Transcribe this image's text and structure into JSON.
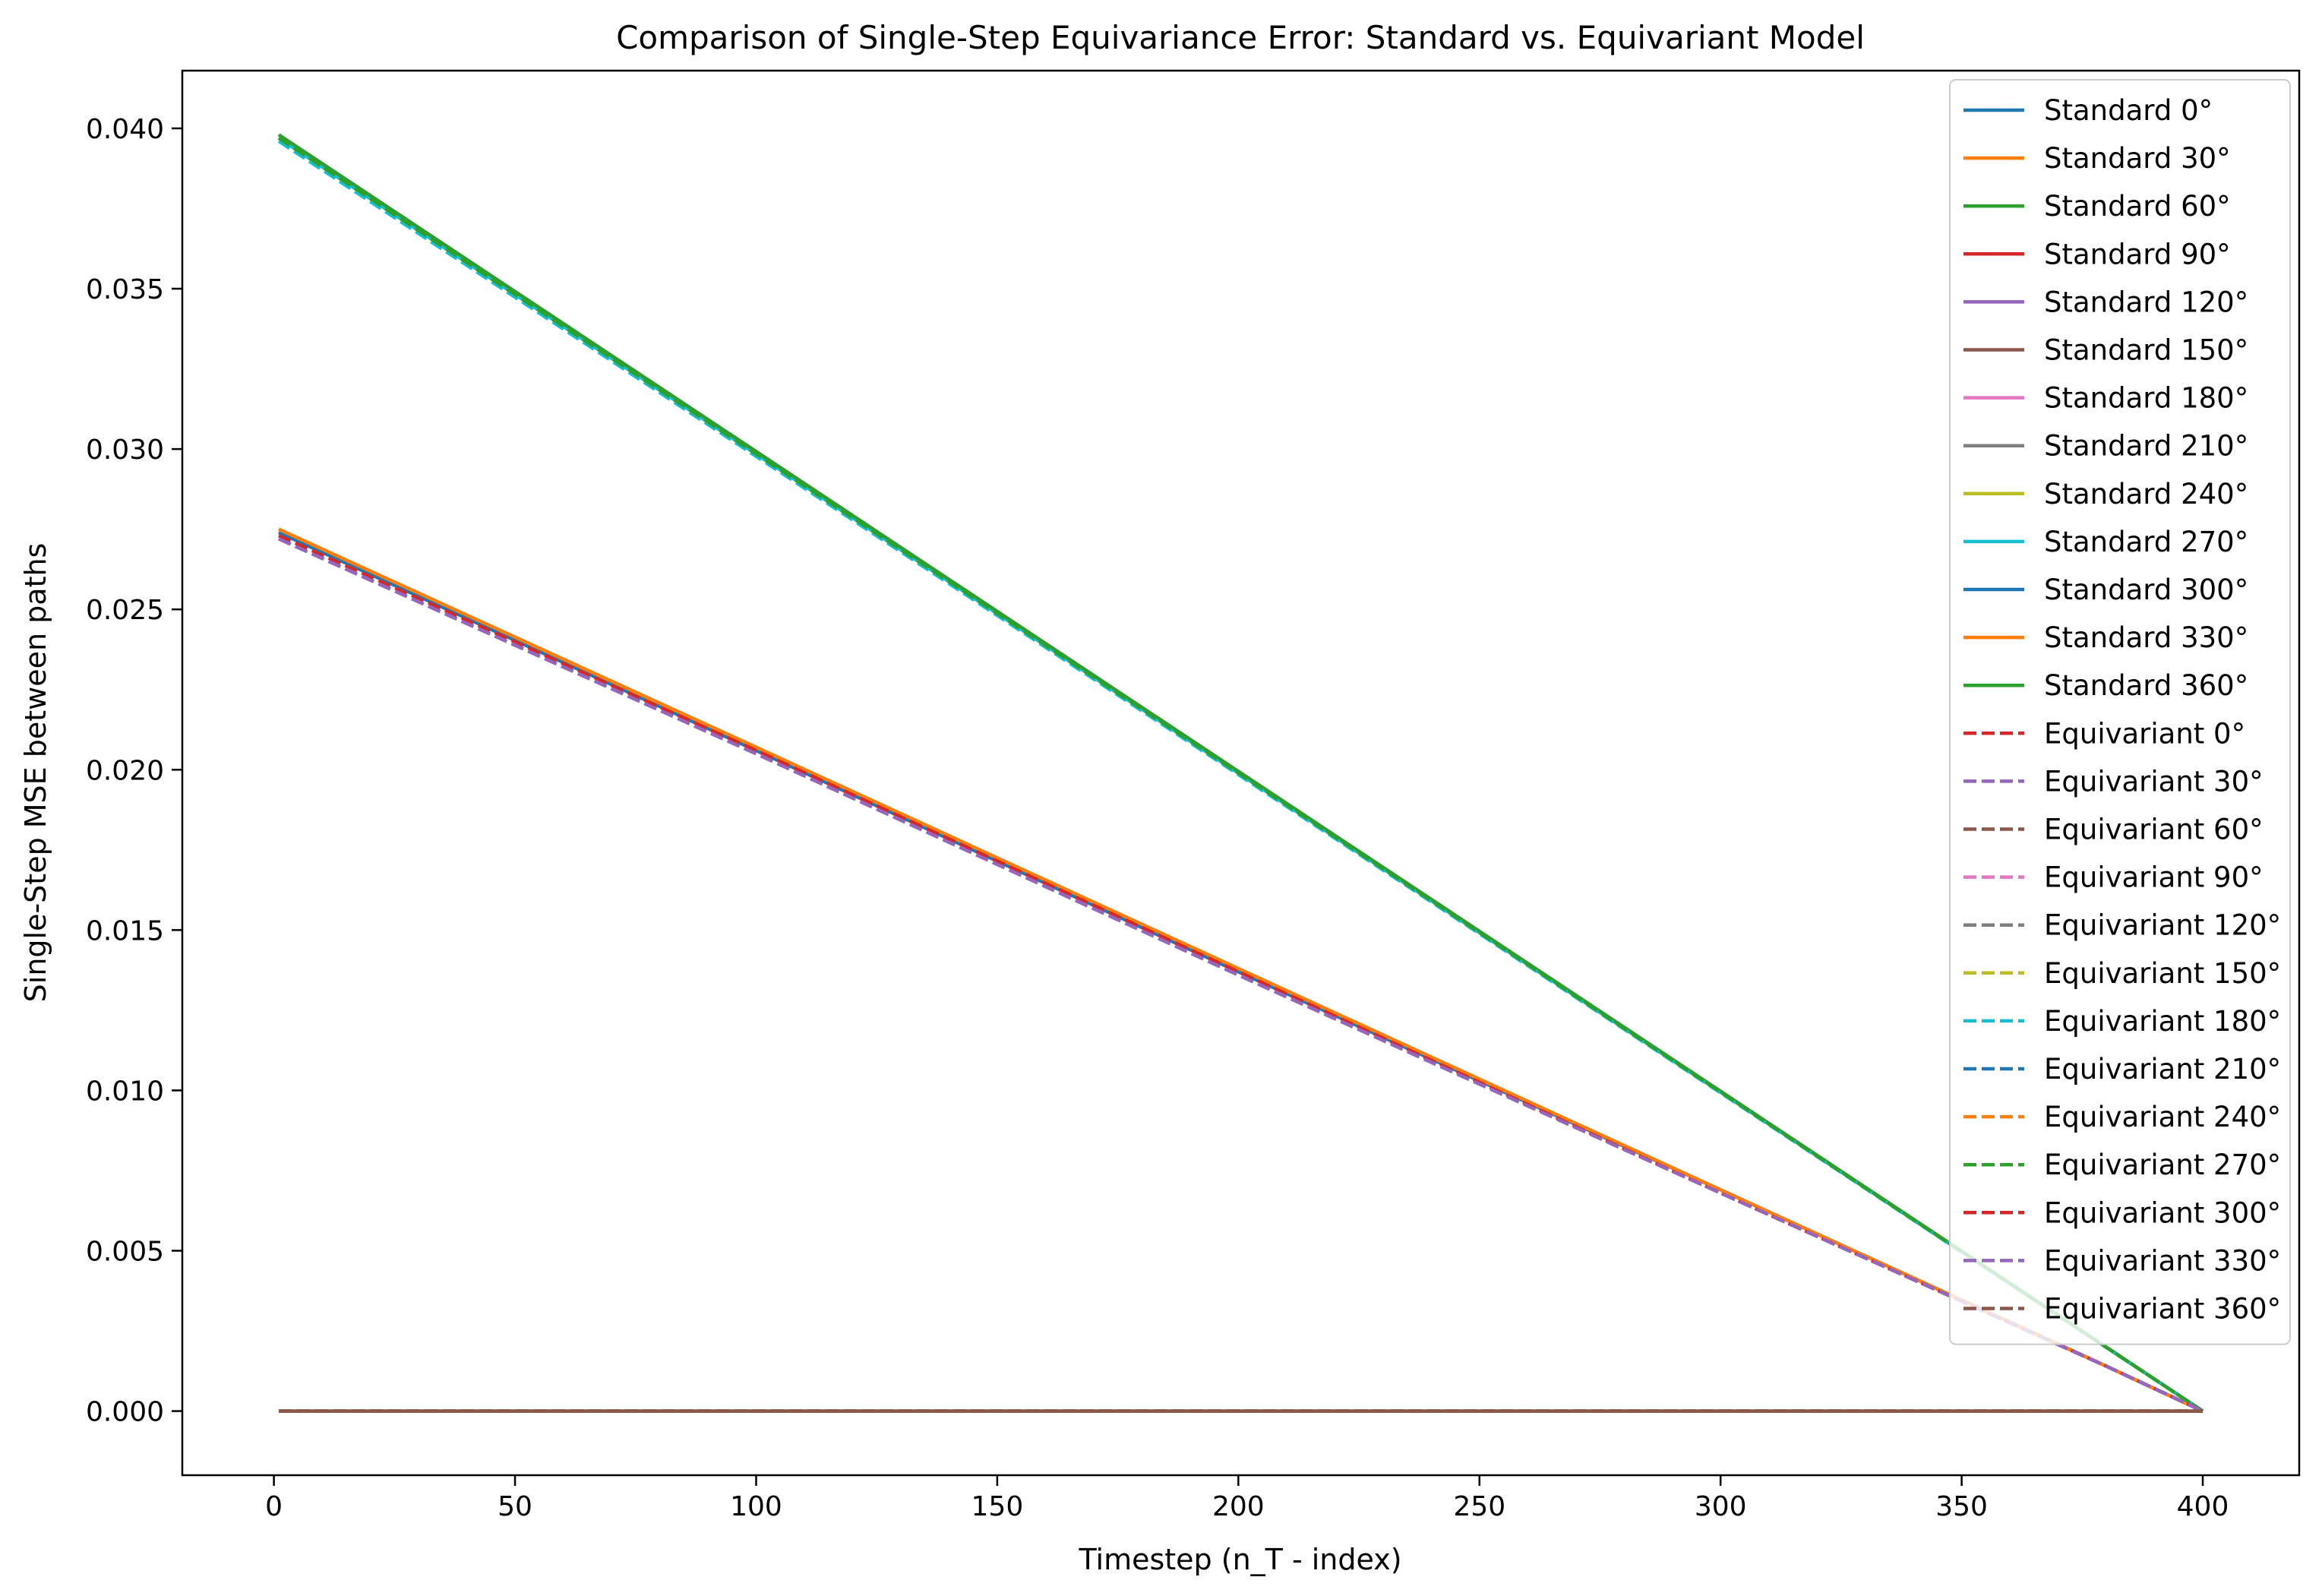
{
  "chart_data": {
    "type": "line",
    "title": "Comparison of Single-Step Equivariance Error: Standard vs. Equivariant Model",
    "xlabel": "Timestep (n_T - index)",
    "ylabel": "Single-Step MSE between paths",
    "xlim": [
      -19,
      420
    ],
    "ylim": [
      -0.002,
      0.0418
    ],
    "xticks": [
      0,
      50,
      100,
      150,
      200,
      250,
      300,
      350,
      400
    ],
    "xtick_labels": [
      "0",
      "50",
      "100",
      "150",
      "200",
      "250",
      "300",
      "350",
      "400"
    ],
    "yticks": [
      0.0,
      0.005,
      0.01,
      0.015,
      0.02,
      0.025,
      0.03,
      0.035,
      0.04
    ],
    "ytick_labels": [
      "0.000",
      "0.005",
      "0.010",
      "0.015",
      "0.020",
      "0.025",
      "0.030",
      "0.035",
      "0.040"
    ],
    "grid": false,
    "legend": "upper-right",
    "series": [
      {
        "name": "Standard 0°",
        "color": "#1f77b4",
        "dash": "solid",
        "x": [
          1,
          400
        ],
        "y": [
          0.0,
          0.0
        ]
      },
      {
        "name": "Standard 30°",
        "color": "#ff7f0e",
        "dash": "solid",
        "x": [
          1,
          100,
          200,
          300,
          380,
          400
        ],
        "y": [
          0.0275,
          0.0207,
          0.0138,
          0.0069,
          0.0014,
          0.0
        ]
      },
      {
        "name": "Standard 60°",
        "color": "#2ca02c",
        "dash": "solid",
        "x": [
          1,
          400
        ],
        "y": [
          0.0397,
          0.0
        ]
      },
      {
        "name": "Standard 90°",
        "color": "#d62728",
        "dash": "solid",
        "x": [
          1,
          400
        ],
        "y": [
          0.0397,
          0.0
        ]
      },
      {
        "name": "Standard 120°",
        "color": "#9467bd",
        "dash": "solid",
        "x": [
          1,
          100,
          200,
          300,
          380,
          400
        ],
        "y": [
          0.0274,
          0.0206,
          0.0137,
          0.0069,
          0.0014,
          0.0
        ]
      },
      {
        "name": "Standard 150°",
        "color": "#8c564b",
        "dash": "solid",
        "x": [
          1,
          400
        ],
        "y": [
          0.0,
          0.0
        ]
      },
      {
        "name": "Standard 180°",
        "color": "#e377c2",
        "dash": "solid",
        "x": [
          1,
          100,
          200,
          300,
          380,
          400
        ],
        "y": [
          0.0274,
          0.0206,
          0.0137,
          0.0069,
          0.0014,
          0.0
        ]
      },
      {
        "name": "Standard 210°",
        "color": "#7f7f7f",
        "dash": "solid",
        "x": [
          1,
          400
        ],
        "y": [
          0.0397,
          0.0
        ]
      },
      {
        "name": "Standard 240°",
        "color": "#bcbd22",
        "dash": "solid",
        "x": [
          1,
          100,
          200,
          300,
          380,
          400
        ],
        "y": [
          0.0275,
          0.0207,
          0.0138,
          0.0069,
          0.0014,
          0.0
        ]
      },
      {
        "name": "Standard 270°",
        "color": "#17becf",
        "dash": "solid",
        "x": [
          1,
          400
        ],
        "y": [
          0.0397,
          0.0
        ]
      },
      {
        "name": "Standard 300°",
        "color": "#1f77b4",
        "dash": "solid",
        "x": [
          1,
          100,
          200,
          300,
          380,
          400
        ],
        "y": [
          0.0274,
          0.0206,
          0.0137,
          0.0069,
          0.0014,
          0.0
        ]
      },
      {
        "name": "Standard 330°",
        "color": "#ff7f0e",
        "dash": "solid",
        "x": [
          1,
          100,
          200,
          300,
          380,
          400
        ],
        "y": [
          0.0275,
          0.0207,
          0.0138,
          0.0069,
          0.0014,
          0.0
        ]
      },
      {
        "name": "Standard 360°",
        "color": "#2ca02c",
        "dash": "solid",
        "x": [
          1,
          400
        ],
        "y": [
          0.0398,
          0.0
        ]
      },
      {
        "name": "Equivariant 0°",
        "color": "#d62728",
        "dash": "dashed",
        "x": [
          1,
          400
        ],
        "y": [
          0.0,
          0.0
        ]
      },
      {
        "name": "Equivariant 30°",
        "color": "#9467bd",
        "dash": "dashed",
        "x": [
          1,
          100,
          200,
          300,
          380,
          400
        ],
        "y": [
          0.0272,
          0.0205,
          0.0136,
          0.0068,
          0.0014,
          0.0
        ]
      },
      {
        "name": "Equivariant 60°",
        "color": "#8c564b",
        "dash": "dashed",
        "x": [
          1,
          100,
          200,
          300,
          380,
          400
        ],
        "y": [
          0.0272,
          0.0205,
          0.0136,
          0.0068,
          0.0014,
          0.0
        ]
      },
      {
        "name": "Equivariant 90°",
        "color": "#e377c2",
        "dash": "dashed",
        "x": [
          1,
          400
        ],
        "y": [
          0.0,
          0.0
        ]
      },
      {
        "name": "Equivariant 120°",
        "color": "#7f7f7f",
        "dash": "dashed",
        "x": [
          1,
          400
        ],
        "y": [
          0.0,
          0.0
        ]
      },
      {
        "name": "Equivariant 150°",
        "color": "#bcbd22",
        "dash": "dashed",
        "x": [
          1,
          400
        ],
        "y": [
          0.0,
          0.0
        ]
      },
      {
        "name": "Equivariant 180°",
        "color": "#17becf",
        "dash": "dashed",
        "x": [
          1,
          400
        ],
        "y": [
          0.0396,
          0.0
        ]
      },
      {
        "name": "Equivariant 210°",
        "color": "#1f77b4",
        "dash": "dashed",
        "x": [
          1,
          400
        ],
        "y": [
          0.0,
          0.0
        ]
      },
      {
        "name": "Equivariant 240°",
        "color": "#ff7f0e",
        "dash": "dashed",
        "x": [
          1,
          400
        ],
        "y": [
          0.0,
          0.0
        ]
      },
      {
        "name": "Equivariant 270°",
        "color": "#2ca02c",
        "dash": "dashed",
        "x": [
          1,
          400
        ],
        "y": [
          0.0397,
          0.0
        ]
      },
      {
        "name": "Equivariant 300°",
        "color": "#d62728",
        "dash": "dashed",
        "x": [
          1,
          100,
          200,
          300,
          380,
          400
        ],
        "y": [
          0.0273,
          0.0206,
          0.0137,
          0.0068,
          0.0014,
          0.0
        ]
      },
      {
        "name": "Equivariant 330°",
        "color": "#9467bd",
        "dash": "dashed",
        "x": [
          1,
          100,
          200,
          300,
          380,
          400
        ],
        "y": [
          0.0272,
          0.0205,
          0.0136,
          0.0068,
          0.0014,
          0.0
        ]
      },
      {
        "name": "Equivariant 360°",
        "color": "#8c564b",
        "dash": "dashed",
        "x": [
          1,
          400
        ],
        "y": [
          0.0,
          0.0
        ]
      }
    ]
  }
}
